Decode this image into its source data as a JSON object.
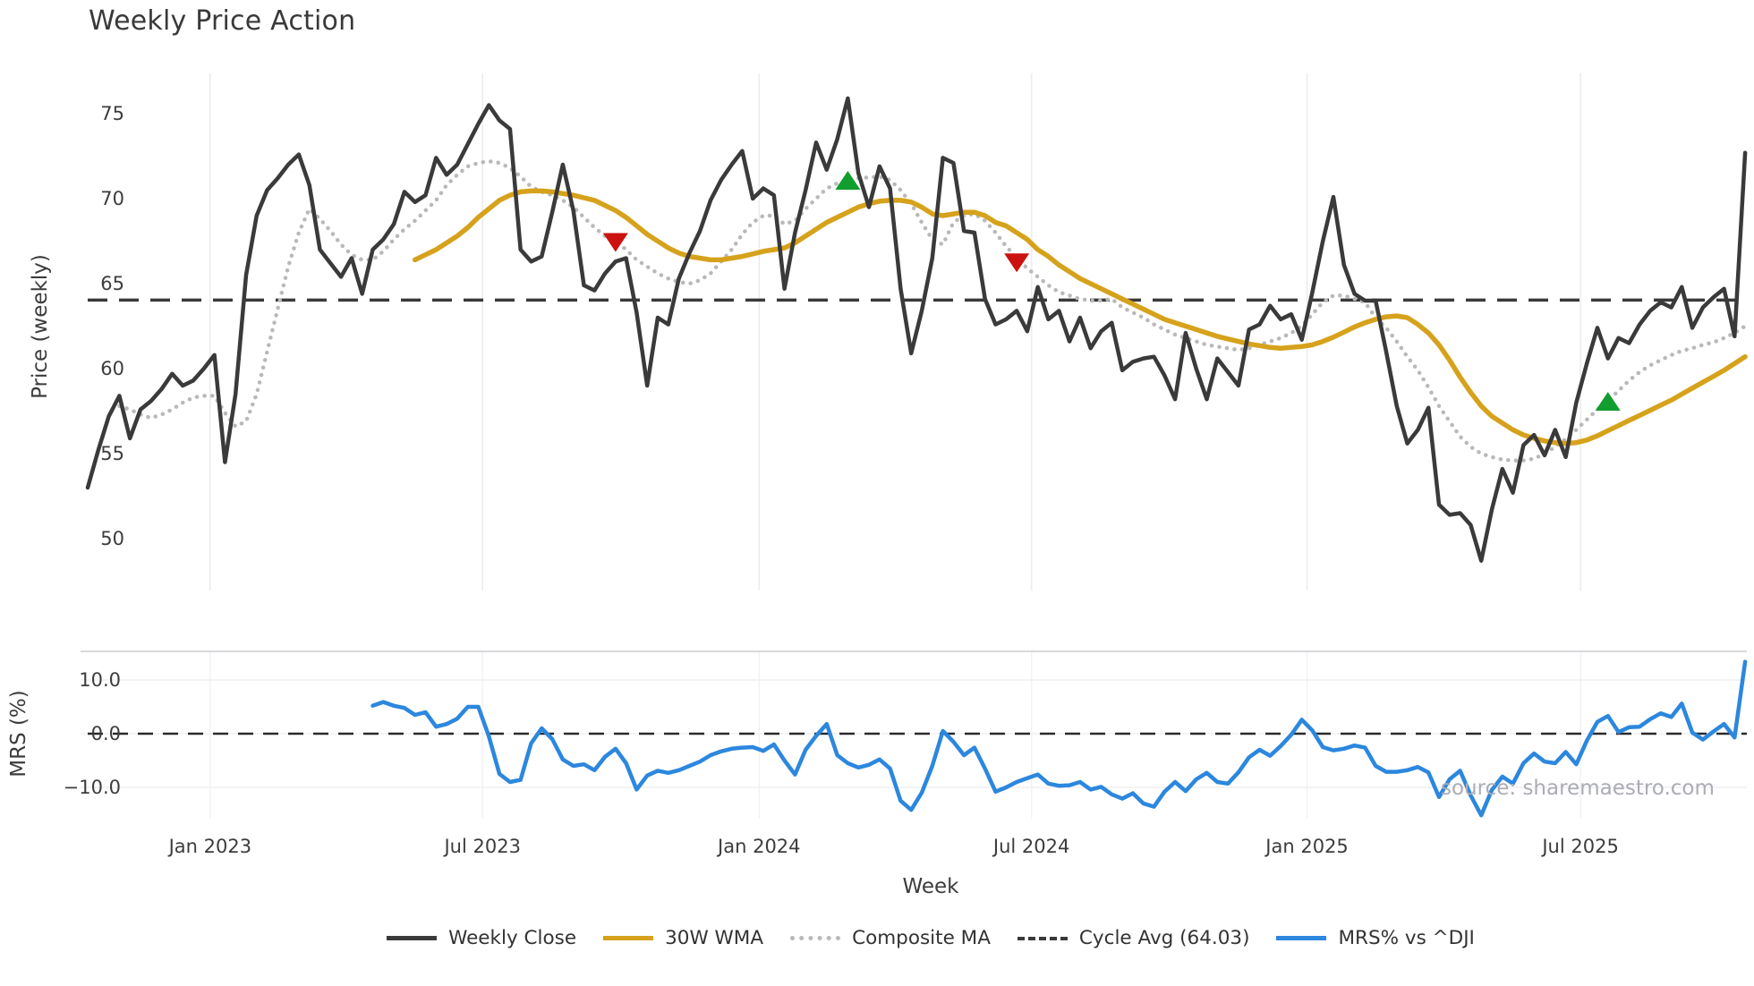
{
  "title": "Weekly Price Action",
  "source_text": "source: sharemaestro.com",
  "colors": {
    "close": "#3a3a3a",
    "wma": "#d6a21c",
    "composite": "#b9b9b9",
    "cycle": "#3a3a3a",
    "mrs": "#2c87de",
    "buy": "#119e2f",
    "sell": "#cc1111",
    "grid": "#ececf1",
    "spine": "#d9d9de"
  },
  "legend": [
    {
      "label": "Weekly Close",
      "style": "solid",
      "color": "#3a3a3a"
    },
    {
      "label": "30W WMA",
      "style": "solid",
      "color": "#d6a21c"
    },
    {
      "label": "Composite MA",
      "style": "dotted",
      "color": "#b9b9b9"
    },
    {
      "label": "Cycle Avg (64.03)",
      "style": "dashed",
      "color": "#3a3a3a"
    },
    {
      "label": "MRS% vs ^DJI",
      "style": "solid",
      "color": "#2c87de"
    }
  ],
  "chart_data": [
    {
      "type": "line",
      "title": "Weekly Price Action",
      "xlabel": "Week",
      "ylabel": "Price (weekly)",
      "ylim": [
        47.5,
        77.5
      ],
      "grid": "vertical-only",
      "legend_position": "bottom",
      "y_ticks": [
        75,
        70,
        65,
        60,
        55,
        50
      ],
      "x_ticks": [
        {
          "label": "Jan 2023",
          "week": 11.6
        },
        {
          "label": "Jul 2023",
          "week": 37.4
        },
        {
          "label": "Jan 2024",
          "week": 63.6
        },
        {
          "label": "Jul 2024",
          "week": 89.4
        },
        {
          "label": "Jan 2025",
          "week": 115.5
        },
        {
          "label": "Jul 2025",
          "week": 141.4
        }
      ],
      "cycle_avg": 64.03,
      "series": [
        {
          "name": "Weekly Close",
          "start_week": 0,
          "values": [
            53.0,
            55.2,
            57.2,
            58.4,
            55.9,
            57.6,
            58.1,
            58.8,
            59.7,
            59.0,
            59.3,
            60.0,
            60.8,
            54.5,
            58.5,
            65.5,
            69.0,
            70.5,
            71.2,
            72.0,
            72.6,
            70.8,
            67.0,
            66.2,
            65.4,
            66.5,
            64.4,
            67.0,
            67.6,
            68.5,
            70.4,
            69.8,
            70.2,
            72.4,
            71.4,
            72.0,
            73.2,
            74.4,
            75.5,
            74.6,
            74.1,
            67.0,
            66.3,
            66.6,
            69.2,
            72.0,
            69.3,
            64.9,
            64.6,
            65.6,
            66.3,
            66.5,
            63.3,
            59.0,
            63.0,
            62.6,
            65.3,
            66.8,
            68.1,
            69.9,
            71.1,
            72.0,
            72.8,
            70.0,
            70.6,
            70.2,
            64.7,
            68.0,
            70.5,
            73.3,
            71.7,
            73.5,
            75.9,
            71.5,
            69.5,
            71.9,
            70.6,
            64.7,
            60.9,
            63.4,
            66.5,
            72.4,
            72.1,
            68.1,
            68.0,
            64.1,
            62.6,
            62.9,
            63.4,
            62.2,
            64.8,
            62.9,
            63.4,
            61.6,
            63.0,
            61.2,
            62.2,
            62.7,
            59.9,
            60.4,
            60.6,
            60.7,
            59.6,
            58.2,
            62.1,
            60.0,
            58.2,
            60.6,
            59.8,
            59.0,
            62.3,
            62.6,
            63.7,
            62.9,
            63.2,
            61.7,
            64.5,
            67.5,
            70.1,
            66.1,
            64.4,
            64.0,
            64.0,
            61.0,
            57.8,
            55.6,
            56.4,
            57.7,
            52.0,
            51.4,
            51.5,
            50.8,
            48.7,
            51.7,
            54.1,
            52.7,
            55.5,
            56.1,
            54.9,
            56.4,
            54.8,
            58.0,
            60.3,
            62.4,
            60.6,
            61.8,
            61.5,
            62.6,
            63.4,
            63.9,
            63.6,
            64.8,
            62.4,
            63.6,
            64.2,
            64.7,
            61.9,
            72.7
          ]
        },
        {
          "name": "30W WMA",
          "start_week": 31,
          "values": [
            66.4,
            66.7,
            67.0,
            67.4,
            67.8,
            68.3,
            68.9,
            69.4,
            69.9,
            70.2,
            70.4,
            70.45,
            70.45,
            70.4,
            70.3,
            70.2,
            70.05,
            69.9,
            69.6,
            69.3,
            68.9,
            68.4,
            67.9,
            67.5,
            67.1,
            66.8,
            66.6,
            66.5,
            66.4,
            66.4,
            66.5,
            66.6,
            66.75,
            66.9,
            67.0,
            67.1,
            67.4,
            67.8,
            68.2,
            68.6,
            68.9,
            69.2,
            69.5,
            69.7,
            69.85,
            69.9,
            69.9,
            69.8,
            69.5,
            69.1,
            69.0,
            69.1,
            69.2,
            69.2,
            69.0,
            68.6,
            68.4,
            68.0,
            67.6,
            67.0,
            66.6,
            66.1,
            65.7,
            65.3,
            65.0,
            64.7,
            64.4,
            64.1,
            63.8,
            63.5,
            63.2,
            62.9,
            62.7,
            62.5,
            62.3,
            62.1,
            61.9,
            61.75,
            61.6,
            61.45,
            61.35,
            61.25,
            61.2,
            61.25,
            61.3,
            61.4,
            61.6,
            61.85,
            62.15,
            62.45,
            62.7,
            62.9,
            63.05,
            63.1,
            63.0,
            62.6,
            62.1,
            61.4,
            60.5,
            59.5,
            58.6,
            57.8,
            57.2,
            56.8,
            56.4,
            56.1,
            55.9,
            55.75,
            55.65,
            55.6,
            55.65,
            55.8,
            56.05,
            56.35,
            56.65,
            56.95,
            57.25,
            57.55,
            57.85,
            58.15,
            58.5,
            58.85,
            59.2,
            59.55,
            59.9,
            60.3,
            60.7
          ]
        },
        {
          "name": "Composite MA",
          "start_week": 3,
          "style": "dotted",
          "values": [
            57.8,
            57.6,
            57.3,
            57.1,
            57.3,
            57.6,
            58.0,
            58.3,
            58.4,
            58.4,
            57.4,
            56.6,
            56.9,
            58.5,
            61.0,
            63.5,
            66.0,
            68.0,
            69.4,
            68.8,
            68.1,
            67.3,
            66.7,
            66.4,
            66.4,
            66.9,
            67.6,
            68.2,
            68.7,
            69.3,
            69.9,
            70.8,
            71.4,
            71.9,
            72.1,
            72.2,
            72.1,
            71.8,
            71.3,
            70.7,
            70.4,
            70.2,
            69.9,
            69.5,
            68.9,
            68.3,
            67.8,
            67.5,
            67.0,
            66.4,
            66.0,
            65.6,
            65.3,
            65.1,
            65.0,
            65.2,
            65.6,
            66.3,
            67.0,
            67.9,
            68.6,
            69.0,
            69.0,
            68.5,
            68.7,
            69.4,
            70.0,
            70.6,
            70.9,
            71.1,
            71.2,
            71.25,
            71.3,
            71.1,
            70.5,
            69.7,
            68.6,
            67.6,
            67.3,
            68.6,
            69.0,
            69.1,
            68.7,
            68.0,
            67.2,
            66.5,
            65.9,
            65.4,
            64.9,
            64.5,
            64.3,
            64.1,
            64.0,
            64.0,
            64.1,
            63.6,
            63.3,
            63.0,
            62.6,
            62.3,
            62.0,
            61.8,
            61.6,
            61.4,
            61.3,
            61.2,
            61.1,
            61.2,
            61.4,
            61.6,
            61.8,
            62.1,
            62.5,
            63.2,
            63.9,
            64.3,
            64.3,
            64.1,
            63.9,
            63.0,
            62.4,
            61.6,
            60.7,
            59.9,
            58.9,
            57.8,
            56.9,
            56.0,
            55.4,
            55.0,
            54.8,
            54.65,
            54.6,
            54.6,
            54.7,
            55.0,
            55.4,
            55.85,
            56.4,
            57.0,
            57.6,
            58.1,
            58.7,
            59.3,
            59.8,
            60.2,
            60.5,
            60.8,
            61.05,
            61.2,
            61.4,
            61.55,
            61.8,
            62.1,
            62.5
          ]
        }
      ],
      "markers": {
        "sell": [
          {
            "week": 50,
            "value": 67.5
          },
          {
            "week": 88,
            "value": 66.3
          }
        ],
        "buy": [
          {
            "week": 72,
            "value": 71.0
          },
          {
            "week": 144,
            "value": 58.0
          }
        ]
      }
    },
    {
      "type": "line",
      "ylabel": "MRS (%)",
      "ylim": [
        -16.5,
        15.3
      ],
      "zero_line_dashed": true,
      "y_ticks": [
        10.0,
        0.0,
        -10.0
      ],
      "y_tick_labels": [
        "10.0",
        "0.0",
        "−10.0"
      ],
      "series": [
        {
          "name": "MRS% vs ^DJI",
          "start_week": 27,
          "values": [
            5.2,
            5.9,
            5.2,
            4.8,
            3.5,
            4.0,
            1.3,
            1.8,
            2.8,
            5.0,
            5.0,
            -0.5,
            -7.5,
            -9.0,
            -8.6,
            -1.8,
            1.0,
            -1.0,
            -4.8,
            -6.0,
            -5.7,
            -6.8,
            -4.3,
            -2.8,
            -5.5,
            -10.4,
            -7.8,
            -6.9,
            -7.3,
            -6.8,
            -6.0,
            -5.2,
            -4.0,
            -3.3,
            -2.8,
            -2.6,
            -2.5,
            -3.2,
            -2.0,
            -5.0,
            -7.6,
            -3.0,
            -0.4,
            1.8,
            -4.0,
            -5.5,
            -6.3,
            -5.8,
            -4.8,
            -6.5,
            -12.5,
            -14.2,
            -11.0,
            -6.0,
            0.5,
            -1.5,
            -4.0,
            -2.6,
            -6.5,
            -10.8,
            -10.0,
            -9.0,
            -8.3,
            -7.6,
            -9.3,
            -9.7,
            -9.6,
            -9.0,
            -10.4,
            -9.9,
            -11.3,
            -12.1,
            -11.1,
            -13.0,
            -13.6,
            -10.8,
            -9.0,
            -10.7,
            -8.5,
            -7.3,
            -9.0,
            -9.3,
            -7.2,
            -4.4,
            -3.0,
            -4.1,
            -2.3,
            -0.2,
            2.6,
            0.6,
            -2.5,
            -3.1,
            -2.8,
            -2.2,
            -2.6,
            -6.0,
            -7.1,
            -7.1,
            -6.8,
            -6.2,
            -7.2,
            -11.8,
            -8.5,
            -6.9,
            -11.5,
            -15.2,
            -10.5,
            -8.0,
            -9.3,
            -5.5,
            -3.7,
            -5.2,
            -5.5,
            -3.4,
            -5.7,
            -1.3,
            2.2,
            3.3,
            0.3,
            1.2,
            1.3,
            2.7,
            3.8,
            3.1,
            5.6,
            0.2,
            -1.1,
            0.4,
            1.8,
            -0.7,
            13.4
          ]
        }
      ]
    }
  ]
}
